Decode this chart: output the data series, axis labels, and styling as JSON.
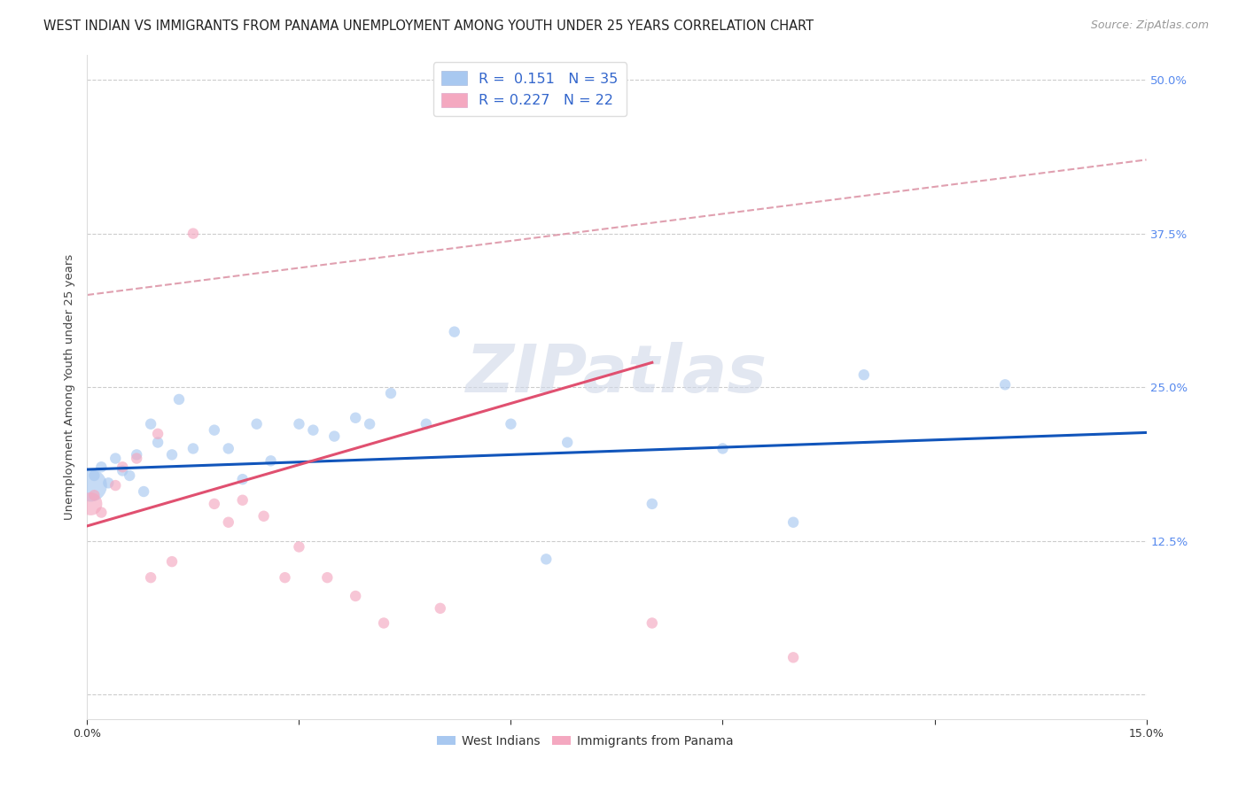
{
  "title": "WEST INDIAN VS IMMIGRANTS FROM PANAMA UNEMPLOYMENT AMONG YOUTH UNDER 25 YEARS CORRELATION CHART",
  "source": "Source: ZipAtlas.com",
  "ylabel": "Unemployment Among Youth under 25 years",
  "xlim": [
    0.0,
    0.15
  ],
  "ylim": [
    -0.02,
    0.52
  ],
  "yticks": [
    0.0,
    0.125,
    0.25,
    0.375,
    0.5
  ],
  "ytick_labels": [
    "",
    "12.5%",
    "25.0%",
    "37.5%",
    "50.0%"
  ],
  "xtick_positions": [
    0.0,
    0.03,
    0.06,
    0.09,
    0.12,
    0.15
  ],
  "xtick_labels": [
    "0.0%",
    "",
    "",
    "",
    "",
    "15.0%"
  ],
  "wi_color": "#a8c8f0",
  "wi_line_color": "#1155bb",
  "pa_color": "#f4a8c0",
  "pa_line_color": "#e05070",
  "dash_line_color": "#e0a0b0",
  "watermark": "ZIPatlas",
  "bg_color": "#ffffff",
  "grid_color": "#cccccc",
  "wi_x": [
    0.0005,
    0.001,
    0.002,
    0.003,
    0.004,
    0.005,
    0.006,
    0.007,
    0.008,
    0.009,
    0.01,
    0.012,
    0.013,
    0.015,
    0.018,
    0.02,
    0.022,
    0.024,
    0.026,
    0.03,
    0.032,
    0.035,
    0.038,
    0.04,
    0.043,
    0.048,
    0.052,
    0.06,
    0.065,
    0.068,
    0.08,
    0.09,
    0.1,
    0.11,
    0.13
  ],
  "wi_y": [
    0.17,
    0.178,
    0.185,
    0.172,
    0.192,
    0.182,
    0.178,
    0.195,
    0.165,
    0.22,
    0.205,
    0.195,
    0.24,
    0.2,
    0.215,
    0.2,
    0.175,
    0.22,
    0.19,
    0.22,
    0.215,
    0.21,
    0.225,
    0.22,
    0.245,
    0.22,
    0.295,
    0.22,
    0.11,
    0.205,
    0.155,
    0.2,
    0.14,
    0.26,
    0.252
  ],
  "wi_sizes": [
    700,
    80,
    80,
    80,
    80,
    80,
    80,
    80,
    80,
    80,
    80,
    80,
    80,
    80,
    80,
    80,
    80,
    80,
    80,
    80,
    80,
    80,
    80,
    80,
    80,
    80,
    80,
    80,
    80,
    80,
    80,
    80,
    80,
    80,
    80
  ],
  "pa_x": [
    0.0005,
    0.001,
    0.002,
    0.004,
    0.005,
    0.007,
    0.009,
    0.01,
    0.012,
    0.015,
    0.018,
    0.02,
    0.022,
    0.025,
    0.028,
    0.03,
    0.034,
    0.038,
    0.042,
    0.05,
    0.08,
    0.1
  ],
  "pa_y": [
    0.155,
    0.162,
    0.148,
    0.17,
    0.185,
    0.192,
    0.095,
    0.212,
    0.108,
    0.375,
    0.155,
    0.14,
    0.158,
    0.145,
    0.095,
    0.12,
    0.095,
    0.08,
    0.058,
    0.07,
    0.058,
    0.03
  ],
  "pa_sizes": [
    350,
    80,
    80,
    80,
    80,
    80,
    80,
    80,
    80,
    80,
    80,
    80,
    80,
    80,
    80,
    80,
    80,
    80,
    80,
    80,
    80,
    80
  ],
  "wi_line_x0": 0.0,
  "wi_line_x1": 0.15,
  "wi_line_y0": 0.183,
  "wi_line_y1": 0.213,
  "pa_line_x0": 0.0,
  "pa_line_x1": 0.08,
  "pa_line_y0": 0.137,
  "pa_line_y1": 0.27,
  "dash_line_x0": 0.0,
  "dash_line_x1": 0.15,
  "dash_line_y0": 0.325,
  "dash_line_y1": 0.435
}
